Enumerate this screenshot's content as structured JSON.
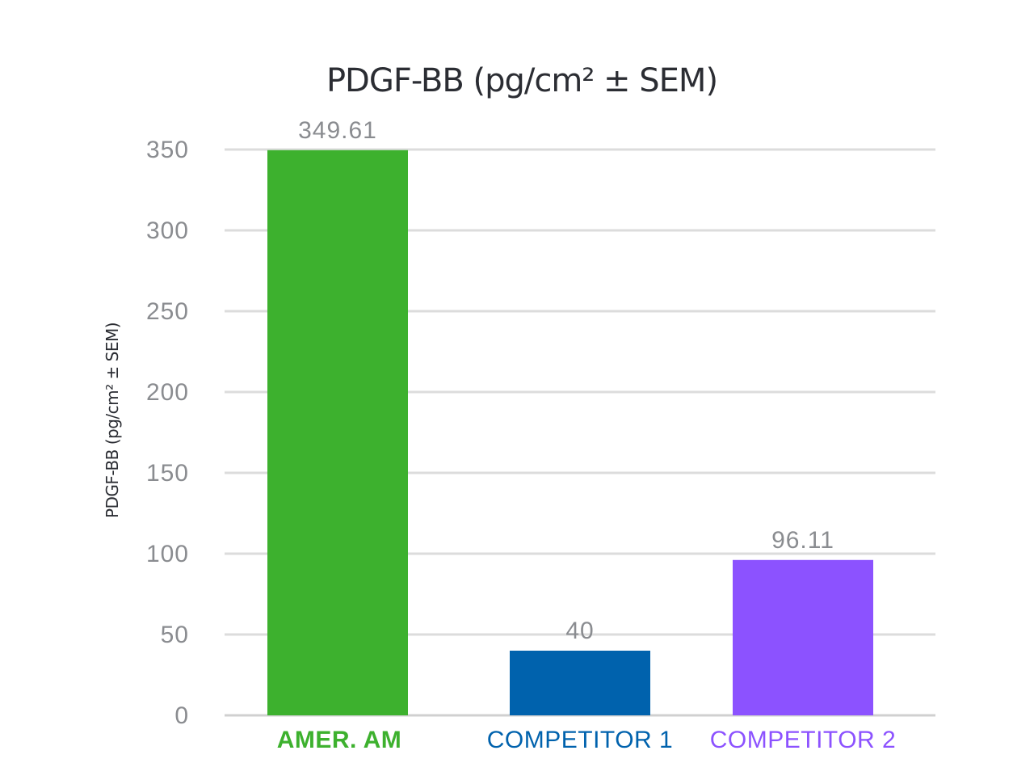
{
  "chart_data": {
    "type": "bar",
    "title": "PDGF-BB (pg/cm² ± SEM)",
    "ylabel": "PDGF-BB  (pg/cm² ± SEM)",
    "xlabel": "",
    "ylim": [
      0,
      350
    ],
    "yticks": [
      "0",
      "50",
      "100",
      "150",
      "200",
      "250",
      "300",
      "350"
    ],
    "grid": true,
    "categories": [
      "AMER. AM",
      "COMPETITOR 1",
      "COMPETITOR 2"
    ],
    "values": [
      349.61,
      40,
      96.11
    ],
    "value_labels": [
      "349.61",
      "40",
      "96.11"
    ],
    "colors": [
      "#3db12e",
      "#0062ad",
      "#8c52ff"
    ],
    "category_label_colors": [
      "#3db12e",
      "#0062ad",
      "#8c52ff"
    ],
    "category_label_bold": [
      true,
      false,
      false
    ]
  }
}
